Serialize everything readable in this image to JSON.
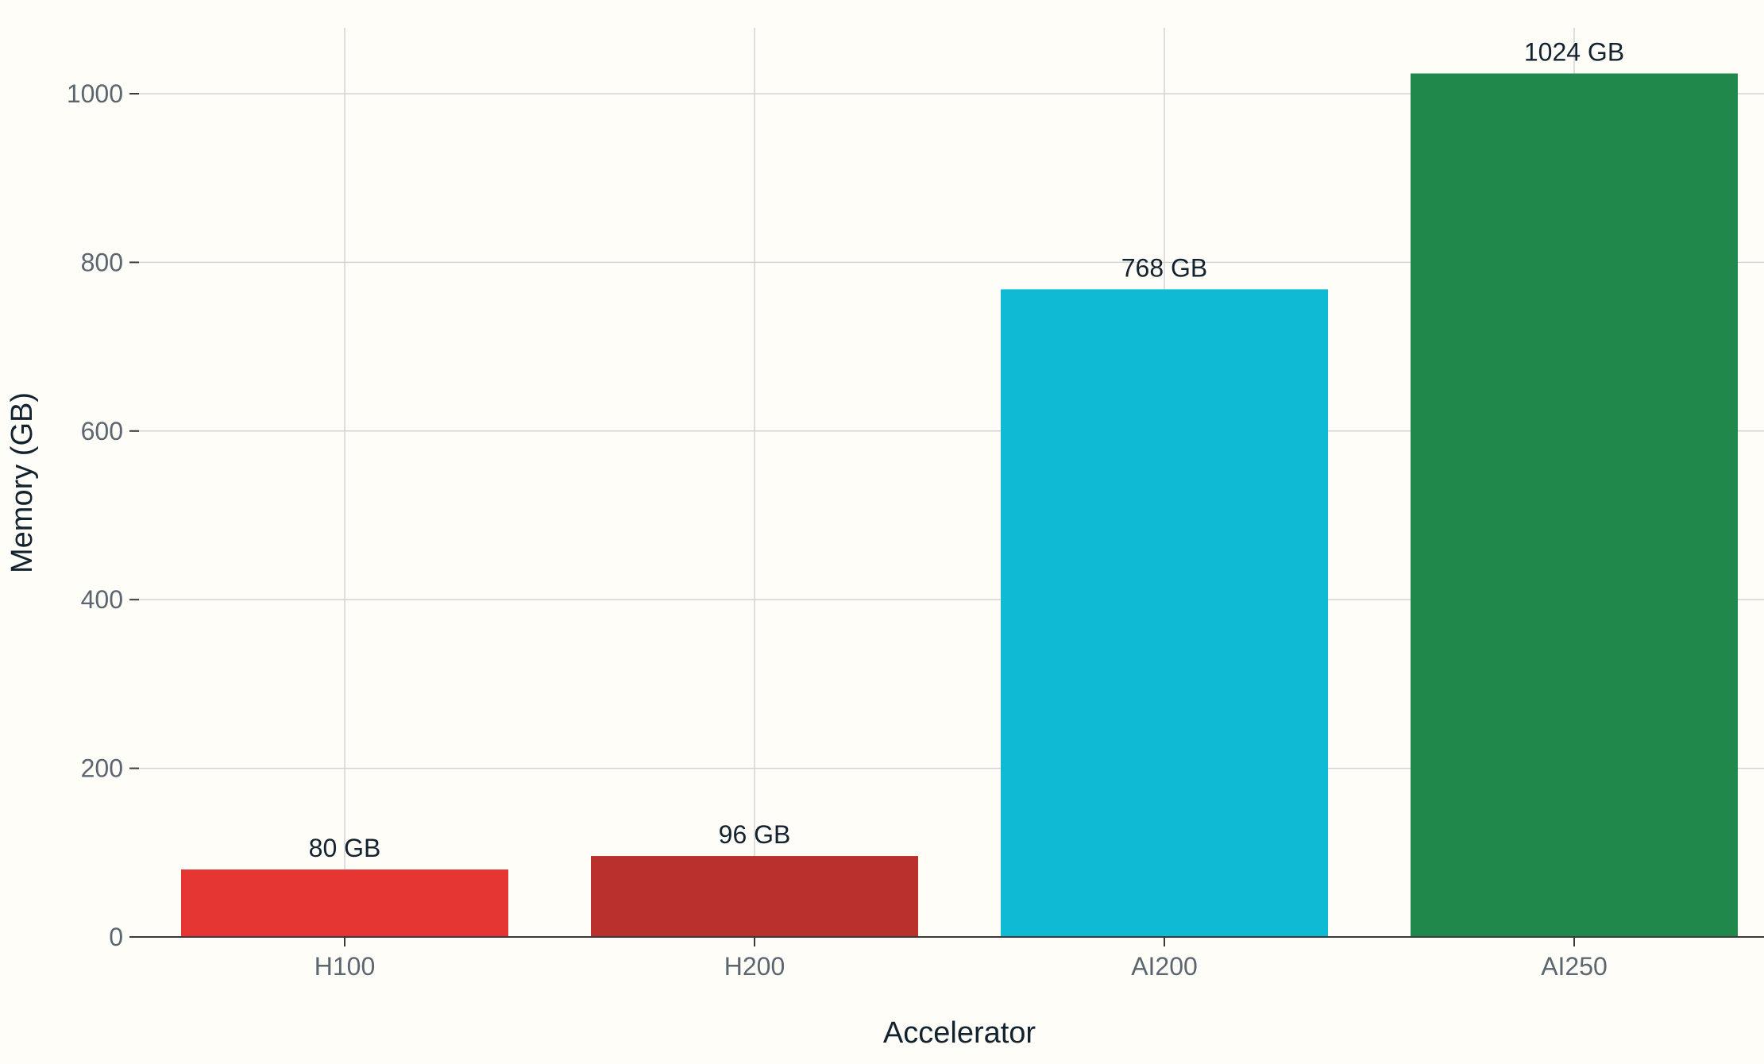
{
  "chart_data": {
    "type": "bar",
    "title": "",
    "xlabel": "Accelerator",
    "ylabel": "Memory (GB)",
    "categories": [
      "H100",
      "H200",
      "AI200",
      "AI250"
    ],
    "values": [
      80,
      96,
      768,
      1024
    ],
    "data_labels": [
      "80 GB",
      "96 GB",
      "768 GB",
      "1024 GB"
    ],
    "colors": [
      "#e53532",
      "#b9302c",
      "#0ebad4",
      "#20884b"
    ],
    "ylim": [
      0,
      1076
    ],
    "yticks": [
      0,
      200,
      400,
      600,
      800,
      1000
    ],
    "ytick_labels": [
      "0",
      "200",
      "400",
      "600",
      "800",
      "1000"
    ],
    "grid": true,
    "legend": "none"
  }
}
